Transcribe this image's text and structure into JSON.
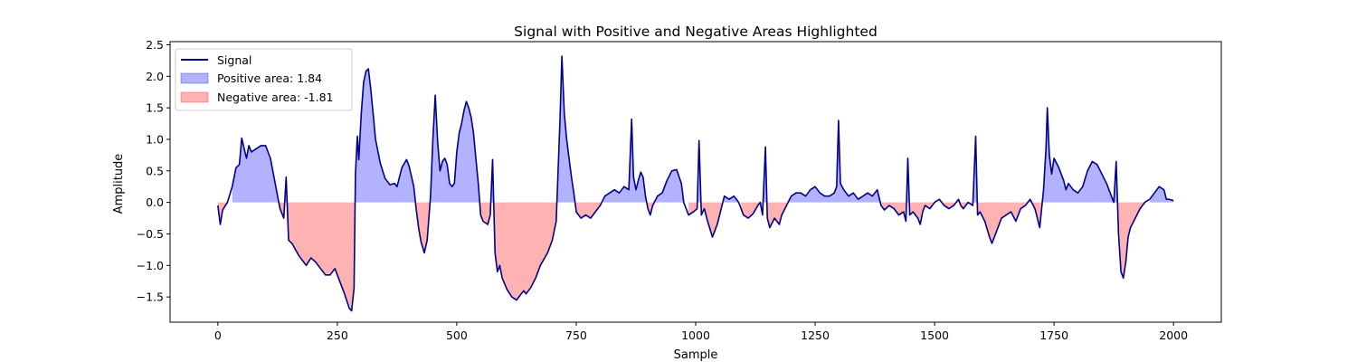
{
  "chart_data": {
    "type": "area",
    "title": "Signal with Positive and Negative Areas Highlighted",
    "xlabel": "Sample",
    "ylabel": "Amplitude",
    "xlim": [
      -100,
      2100
    ],
    "ylim": [
      -1.9,
      2.55
    ],
    "xticks": [
      0,
      250,
      500,
      750,
      1000,
      1250,
      1500,
      1750,
      2000
    ],
    "yticks": [
      -1.5,
      -1.0,
      -0.5,
      0.0,
      0.5,
      1.0,
      1.5,
      2.0,
      2.5
    ],
    "xtick_labels": [
      "0",
      "250",
      "500",
      "750",
      "1000",
      "1250",
      "1500",
      "1750",
      "2000"
    ],
    "ytick_labels": [
      "−1.5",
      "−1.0",
      "−0.5",
      "0.0",
      "0.5",
      "1.0",
      "1.5",
      "2.0",
      "2.5"
    ],
    "grid": false,
    "legend_position": "top-left",
    "legend": [
      {
        "label": "Signal",
        "kind": "line",
        "color": "#00008b"
      },
      {
        "label": "Positive area: 1.84",
        "kind": "patch",
        "color": "#0000ff"
      },
      {
        "label": "Negative area: -1.81",
        "kind": "patch",
        "color": "#ff0000"
      }
    ],
    "colors": {
      "line": "#00008b",
      "positive_fill": "#0000ff",
      "negative_fill": "#ff0000",
      "fill_opacity": 0.3
    },
    "series": [
      {
        "name": "Signal",
        "points": [
          [
            0,
            -0.05
          ],
          [
            5,
            -0.35
          ],
          [
            10,
            -0.12
          ],
          [
            20,
            0.0
          ],
          [
            30,
            0.25
          ],
          [
            38,
            0.55
          ],
          [
            45,
            0.6
          ],
          [
            50,
            1.02
          ],
          [
            55,
            0.85
          ],
          [
            60,
            0.7
          ],
          [
            65,
            0.9
          ],
          [
            70,
            0.8
          ],
          [
            80,
            0.85
          ],
          [
            90,
            0.9
          ],
          [
            100,
            0.9
          ],
          [
            110,
            0.7
          ],
          [
            120,
            0.3
          ],
          [
            130,
            -0.1
          ],
          [
            138,
            -0.25
          ],
          [
            143,
            0.4
          ],
          [
            148,
            -0.6
          ],
          [
            155,
            -0.65
          ],
          [
            170,
            -0.85
          ],
          [
            185,
            -1.0
          ],
          [
            195,
            -0.88
          ],
          [
            205,
            -0.95
          ],
          [
            215,
            -1.05
          ],
          [
            225,
            -1.15
          ],
          [
            235,
            -1.15
          ],
          [
            245,
            -1.05
          ],
          [
            255,
            -1.25
          ],
          [
            265,
            -1.45
          ],
          [
            275,
            -1.68
          ],
          [
            280,
            -1.72
          ],
          [
            285,
            -1.35
          ],
          [
            288,
            0.45
          ],
          [
            292,
            1.05
          ],
          [
            295,
            0.68
          ],
          [
            300,
            1.4
          ],
          [
            305,
            1.9
          ],
          [
            310,
            2.08
          ],
          [
            315,
            2.12
          ],
          [
            320,
            1.8
          ],
          [
            325,
            1.4
          ],
          [
            330,
            1.0
          ],
          [
            340,
            0.62
          ],
          [
            350,
            0.38
          ],
          [
            360,
            0.28
          ],
          [
            370,
            0.3
          ],
          [
            375,
            0.25
          ],
          [
            385,
            0.55
          ],
          [
            395,
            0.68
          ],
          [
            400,
            0.58
          ],
          [
            410,
            0.25
          ],
          [
            415,
            -0.1
          ],
          [
            420,
            -0.4
          ],
          [
            425,
            -0.62
          ],
          [
            432,
            -0.8
          ],
          [
            438,
            -0.6
          ],
          [
            445,
            0.1
          ],
          [
            450,
            1.0
          ],
          [
            455,
            1.7
          ],
          [
            460,
            0.95
          ],
          [
            465,
            0.5
          ],
          [
            470,
            0.65
          ],
          [
            475,
            0.7
          ],
          [
            480,
            0.6
          ],
          [
            485,
            0.3
          ],
          [
            490,
            0.25
          ],
          [
            495,
            0.3
          ],
          [
            500,
            0.8
          ],
          [
            505,
            1.1
          ],
          [
            510,
            1.25
          ],
          [
            515,
            1.45
          ],
          [
            520,
            1.6
          ],
          [
            525,
            1.5
          ],
          [
            530,
            1.35
          ],
          [
            535,
            1.1
          ],
          [
            540,
            0.7
          ],
          [
            545,
            0.3
          ],
          [
            550,
            -0.2
          ],
          [
            555,
            -0.3
          ],
          [
            565,
            -0.35
          ],
          [
            570,
            -0.2
          ],
          [
            575,
            0.68
          ],
          [
            580,
            -0.8
          ],
          [
            585,
            -1.1
          ],
          [
            590,
            -1.0
          ],
          [
            595,
            -1.2
          ],
          [
            605,
            -1.38
          ],
          [
            615,
            -1.5
          ],
          [
            625,
            -1.55
          ],
          [
            635,
            -1.45
          ],
          [
            640,
            -1.4
          ],
          [
            645,
            -1.45
          ],
          [
            655,
            -1.35
          ],
          [
            665,
            -1.2
          ],
          [
            675,
            -1.0
          ],
          [
            690,
            -0.8
          ],
          [
            700,
            -0.6
          ],
          [
            708,
            -0.3
          ],
          [
            712,
            0.5
          ],
          [
            716,
            1.3
          ],
          [
            720,
            2.32
          ],
          [
            725,
            1.4
          ],
          [
            730,
            1.0
          ],
          [
            735,
            0.7
          ],
          [
            740,
            0.4
          ],
          [
            745,
            0.15
          ],
          [
            750,
            -0.15
          ],
          [
            760,
            -0.25
          ],
          [
            770,
            -0.2
          ],
          [
            780,
            -0.25
          ],
          [
            790,
            -0.15
          ],
          [
            800,
            -0.05
          ],
          [
            810,
            0.1
          ],
          [
            820,
            0.15
          ],
          [
            830,
            0.2
          ],
          [
            840,
            0.15
          ],
          [
            850,
            0.25
          ],
          [
            860,
            0.2
          ],
          [
            866,
            1.32
          ],
          [
            870,
            0.4
          ],
          [
            875,
            0.2
          ],
          [
            880,
            0.35
          ],
          [
            885,
            0.48
          ],
          [
            890,
            0.4
          ],
          [
            895,
            0.1
          ],
          [
            900,
            -0.1
          ],
          [
            905,
            -0.2
          ],
          [
            910,
            -0.05
          ],
          [
            920,
            0.1
          ],
          [
            930,
            0.15
          ],
          [
            940,
            0.35
          ],
          [
            950,
            0.5
          ],
          [
            960,
            0.52
          ],
          [
            970,
            0.3
          ],
          [
            975,
            0.0
          ],
          [
            985,
            -0.2
          ],
          [
            995,
            -0.15
          ],
          [
            1003,
            -0.1
          ],
          [
            1007,
            0.98
          ],
          [
            1012,
            -0.2
          ],
          [
            1018,
            -0.1
          ],
          [
            1025,
            -0.3
          ],
          [
            1035,
            -0.55
          ],
          [
            1045,
            -0.35
          ],
          [
            1055,
            -0.05
          ],
          [
            1060,
            0.1
          ],
          [
            1070,
            0.05
          ],
          [
            1080,
            0.1
          ],
          [
            1090,
            0.0
          ],
          [
            1095,
            -0.1
          ],
          [
            1100,
            -0.2
          ],
          [
            1110,
            -0.25
          ],
          [
            1120,
            -0.18
          ],
          [
            1130,
            -0.05
          ],
          [
            1135,
            0.0
          ],
          [
            1140,
            -0.2
          ],
          [
            1146,
            0.88
          ],
          [
            1150,
            -0.25
          ],
          [
            1155,
            -0.4
          ],
          [
            1165,
            -0.25
          ],
          [
            1175,
            -0.35
          ],
          [
            1180,
            -0.2
          ],
          [
            1190,
            -0.05
          ],
          [
            1200,
            0.1
          ],
          [
            1210,
            0.15
          ],
          [
            1220,
            0.15
          ],
          [
            1230,
            0.1
          ],
          [
            1240,
            0.2
          ],
          [
            1250,
            0.25
          ],
          [
            1260,
            0.15
          ],
          [
            1270,
            0.1
          ],
          [
            1280,
            0.1
          ],
          [
            1290,
            0.15
          ],
          [
            1295,
            0.25
          ],
          [
            1299,
            1.3
          ],
          [
            1303,
            0.3
          ],
          [
            1310,
            0.2
          ],
          [
            1320,
            0.1
          ],
          [
            1330,
            0.15
          ],
          [
            1340,
            0.05
          ],
          [
            1350,
            0.1
          ],
          [
            1360,
            0.15
          ],
          [
            1370,
            0.1
          ],
          [
            1380,
            0.2
          ],
          [
            1388,
            -0.05
          ],
          [
            1395,
            -0.12
          ],
          [
            1405,
            -0.05
          ],
          [
            1415,
            -0.1
          ],
          [
            1425,
            -0.2
          ],
          [
            1435,
            -0.15
          ],
          [
            1440,
            -0.3
          ],
          [
            1444,
            0.7
          ],
          [
            1448,
            -0.2
          ],
          [
            1455,
            -0.15
          ],
          [
            1465,
            -0.25
          ],
          [
            1470,
            -0.35
          ],
          [
            1475,
            -0.15
          ],
          [
            1480,
            -0.05
          ],
          [
            1490,
            -0.1
          ],
          [
            1500,
            0.0
          ],
          [
            1510,
            0.05
          ],
          [
            1520,
            -0.05
          ],
          [
            1530,
            -0.1
          ],
          [
            1540,
            -0.05
          ],
          [
            1550,
            0.05
          ],
          [
            1555,
            -0.05
          ],
          [
            1560,
            -0.1
          ],
          [
            1570,
            0.0
          ],
          [
            1580,
            -0.05
          ],
          [
            1586,
            1.05
          ],
          [
            1590,
            -0.2
          ],
          [
            1595,
            -0.15
          ],
          [
            1605,
            -0.3
          ],
          [
            1615,
            -0.55
          ],
          [
            1620,
            -0.65
          ],
          [
            1630,
            -0.45
          ],
          [
            1640,
            -0.25
          ],
          [
            1650,
            -0.2
          ],
          [
            1660,
            -0.15
          ],
          [
            1670,
            -0.3
          ],
          [
            1680,
            -0.1
          ],
          [
            1690,
            -0.05
          ],
          [
            1700,
            0.05
          ],
          [
            1710,
            -0.1
          ],
          [
            1720,
            -0.4
          ],
          [
            1728,
            0.2
          ],
          [
            1733,
            0.85
          ],
          [
            1736,
            1.5
          ],
          [
            1740,
            0.75
          ],
          [
            1745,
            0.45
          ],
          [
            1750,
            0.7
          ],
          [
            1760,
            0.55
          ],
          [
            1770,
            0.35
          ],
          [
            1775,
            0.2
          ],
          [
            1780,
            0.3
          ],
          [
            1790,
            0.2
          ],
          [
            1800,
            0.15
          ],
          [
            1810,
            0.25
          ],
          [
            1820,
            0.5
          ],
          [
            1830,
            0.65
          ],
          [
            1840,
            0.6
          ],
          [
            1850,
            0.45
          ],
          [
            1860,
            0.3
          ],
          [
            1870,
            0.1
          ],
          [
            1875,
            0.0
          ],
          [
            1880,
            0.65
          ],
          [
            1885,
            -0.5
          ],
          [
            1890,
            -1.1
          ],
          [
            1895,
            -1.2
          ],
          [
            1900,
            -0.95
          ],
          [
            1905,
            -0.55
          ],
          [
            1910,
            -0.4
          ],
          [
            1920,
            -0.25
          ],
          [
            1930,
            -0.1
          ],
          [
            1940,
            0.0
          ],
          [
            1950,
            0.05
          ],
          [
            1960,
            0.15
          ],
          [
            1970,
            0.25
          ],
          [
            1980,
            0.2
          ],
          [
            1985,
            0.05
          ],
          [
            1990,
            0.05
          ],
          [
            2000,
            0.03
          ]
        ]
      }
    ]
  }
}
